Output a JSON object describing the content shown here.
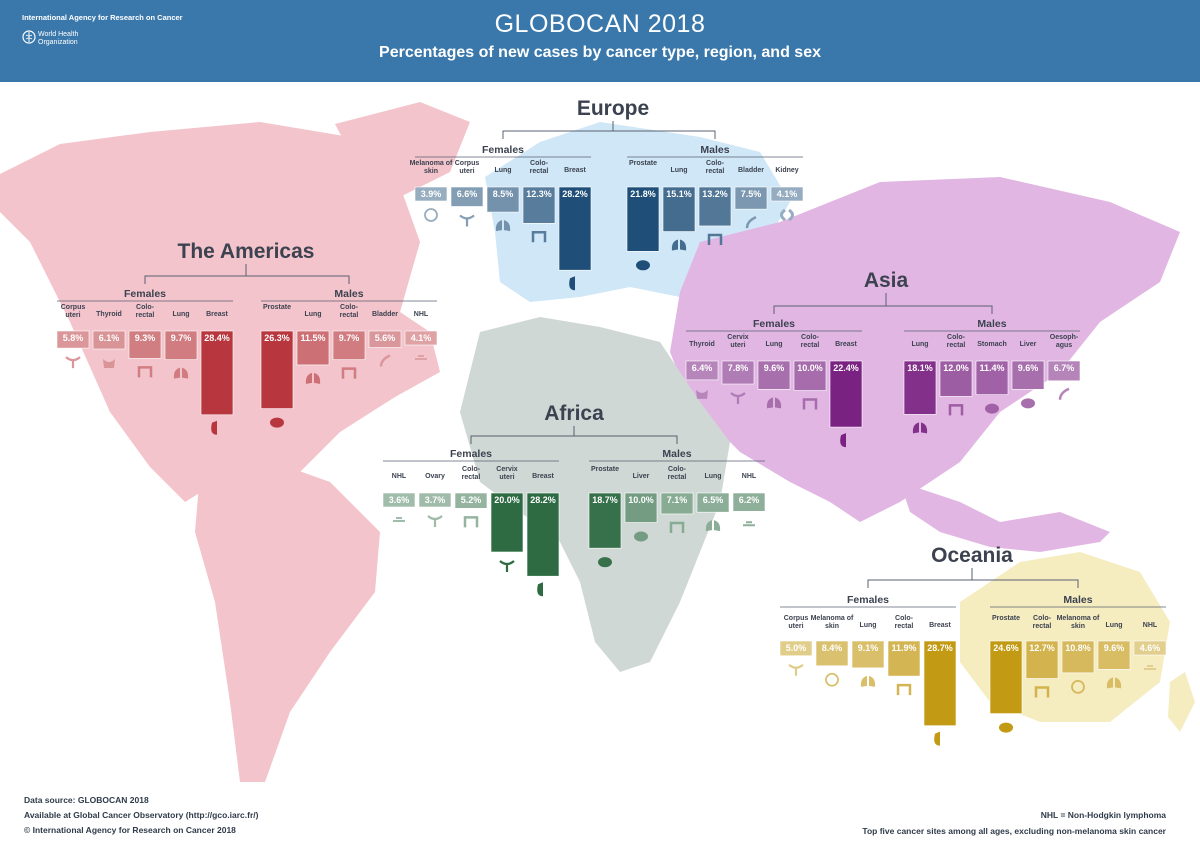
{
  "header": {
    "title": "GLOBOCAN 2018",
    "subtitle": "Percentages of new cases by cancer type, region, and sex",
    "org_iarc": "International Agency for Research on Cancer",
    "org_who_line1": "World Health",
    "org_who_line2": "Organization"
  },
  "colors": {
    "header_bg": "#3a78ab",
    "americas": "#f3c4cb",
    "americas_bar": "#b8373e",
    "europe": "#cfe7f6",
    "europe_bar": "#1f4f78",
    "asia": "#e1b6e3",
    "asia_bar": "#7a2282",
    "africa": "#cfd8d4",
    "africa_bar": "#2e6b43",
    "oceania": "#f5ecbf",
    "oceania_bar": "#c39a14"
  },
  "chart_data": [
    {
      "type": "bar",
      "region": "Europe",
      "females": {
        "label": "Females",
        "categories": [
          "Melanoma of skin",
          "Corpus uteri",
          "Lung",
          "Colo-rectal",
          "Breast"
        ],
        "values": [
          3.9,
          6.6,
          8.5,
          12.3,
          28.2
        ],
        "value_labels": [
          "3.9%",
          "6.6%",
          "8.5%",
          "12.3%",
          "28.2%"
        ]
      },
      "males": {
        "label": "Males",
        "categories": [
          "Prostate",
          "Lung",
          "Colo-rectal",
          "Bladder",
          "Kidney"
        ],
        "values": [
          21.8,
          15.1,
          13.2,
          7.5,
          4.1
        ],
        "value_labels": [
          "21.8%",
          "15.1%",
          "13.2%",
          "7.5%",
          "4.1%"
        ]
      }
    },
    {
      "type": "bar",
      "region": "The Americas",
      "females": {
        "label": "Females",
        "categories": [
          "Corpus uteri",
          "Thyroid",
          "Colo-rectal",
          "Lung",
          "Breast"
        ],
        "values": [
          5.8,
          6.1,
          9.3,
          9.7,
          28.4
        ],
        "value_labels": [
          "5.8%",
          "6.1%",
          "9.3%",
          "9.7%",
          "28.4%"
        ]
      },
      "males": {
        "label": "Males",
        "categories": [
          "Prostate",
          "Lung",
          "Colo-rectal",
          "Bladder",
          "NHL"
        ],
        "values": [
          26.3,
          11.5,
          9.7,
          5.6,
          4.1
        ],
        "value_labels": [
          "26.3%",
          "11.5%",
          "9.7%",
          "5.6%",
          "4.1%"
        ]
      }
    },
    {
      "type": "bar",
      "region": "Asia",
      "females": {
        "label": "Females",
        "categories": [
          "Thyroid",
          "Cervix uteri",
          "Lung",
          "Colo-rectal",
          "Breast"
        ],
        "values": [
          6.4,
          7.8,
          9.6,
          10.0,
          22.4
        ],
        "value_labels": [
          "6.4%",
          "7.8%",
          "9.6%",
          "10.0%",
          "22.4%"
        ]
      },
      "males": {
        "label": "Males",
        "categories": [
          "Lung",
          "Colo-rectal",
          "Stomach",
          "Liver",
          "Oesoph-agus"
        ],
        "values": [
          18.1,
          12.0,
          11.4,
          9.6,
          6.7
        ],
        "value_labels": [
          "18.1%",
          "12.0%",
          "11.4%",
          "9.6%",
          "6.7%"
        ]
      }
    },
    {
      "type": "bar",
      "region": "Africa",
      "females": {
        "label": "Females",
        "categories": [
          "NHL",
          "Ovary",
          "Colo-rectal",
          "Cervix uteri",
          "Breast"
        ],
        "values": [
          3.6,
          3.7,
          5.2,
          20.0,
          28.2
        ],
        "value_labels": [
          "3.6%",
          "3.7%",
          "5.2%",
          "20.0%",
          "28.2%"
        ]
      },
      "males": {
        "label": "Males",
        "categories": [
          "Prostate",
          "Liver",
          "Colo-rectal",
          "Lung",
          "NHL"
        ],
        "values": [
          18.7,
          10.0,
          7.1,
          6.5,
          6.2
        ],
        "value_labels": [
          "18.7%",
          "10.0%",
          "7.1%",
          "6.5%",
          "6.2%"
        ]
      }
    },
    {
      "type": "bar",
      "region": "Oceania",
      "females": {
        "label": "Females",
        "categories": [
          "Corpus uteri",
          "Melanoma of skin",
          "Lung",
          "Colo-rectal",
          "Breast"
        ],
        "values": [
          5.0,
          8.4,
          9.1,
          11.9,
          28.7
        ],
        "value_labels": [
          "5.0%",
          "8.4%",
          "9.1%",
          "11.9%",
          "28.7%"
        ]
      },
      "males": {
        "label": "Males",
        "categories": [
          "Prostate",
          "Colo-rectal",
          "Melanoma of skin",
          "Lung",
          "NHL"
        ],
        "values": [
          24.6,
          12.7,
          10.8,
          9.6,
          4.6
        ],
        "value_labels": [
          "24.6%",
          "12.7%",
          "10.8%",
          "9.6%",
          "4.6%"
        ]
      }
    }
  ],
  "footer": {
    "source": "Data source: GLOBOCAN 2018",
    "available": "Available at Global Cancer Observatory (http://gco.iarc.fr/)",
    "copyright": "© International Agency for Research on Cancer 2018",
    "nhl_note": "NHL = Non-Hodgkin lymphoma",
    "sites_note": "Top five cancer sites among all ages, excluding non-melanoma skin cancer"
  }
}
